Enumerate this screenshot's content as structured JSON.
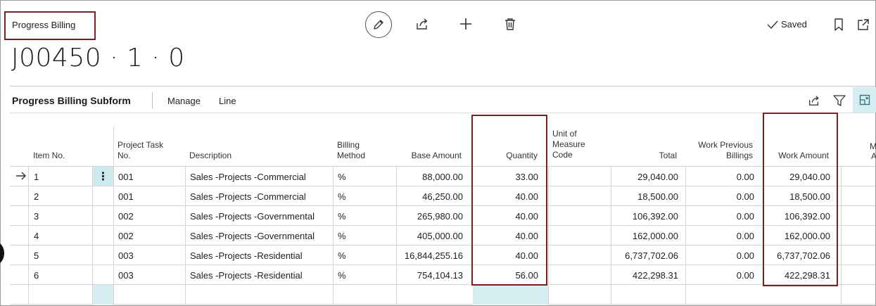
{
  "page": {
    "caption": "Progress Billing",
    "record_title": "J00450 · 1 · 0",
    "status_saved": "Saved"
  },
  "icons": {
    "edit": "pencil-icon",
    "share": "share-icon",
    "add": "plus-icon",
    "delete": "trash-icon",
    "saved": "check-icon",
    "bookmark": "bookmark-icon",
    "popout": "open-in-new-window-icon",
    "filter": "filter-icon",
    "layout": "layout-icon",
    "current_row": "arrow-right-icon",
    "row_menu": "more-vertical-icon"
  },
  "subform": {
    "title": "Progress Billing Subform",
    "actions": [
      "Manage",
      "Line"
    ]
  },
  "columns": {
    "item_no": "Item No.",
    "project_task_no": [
      "Project Task",
      "No."
    ],
    "description": "Description",
    "billing_method": [
      "Billing",
      "Method"
    ],
    "base_amount": "Base Amount",
    "quantity": "Quantity",
    "uom": [
      "Unit of",
      "Measure",
      "Code"
    ],
    "total": "Total",
    "work_previous": [
      "Work Previous",
      "Billings"
    ],
    "work_amount": "Work Amount",
    "next_partial_top": "M",
    "next_partial_bottom": "A"
  },
  "rows": [
    {
      "item_no": "1",
      "task_no": "001",
      "description": "Sales -Projects -Commercial",
      "billing_method": "%",
      "base_amount": "88,000.00",
      "quantity": "33.00",
      "uom": "",
      "total": "29,040.00",
      "work_previous": "0.00",
      "work_amount": "29,040.00"
    },
    {
      "item_no": "2",
      "task_no": "001",
      "description": "Sales -Projects -Commercial",
      "billing_method": "%",
      "base_amount": "46,250.00",
      "quantity": "40.00",
      "uom": "",
      "total": "18,500.00",
      "work_previous": "0.00",
      "work_amount": "18,500.00"
    },
    {
      "item_no": "3",
      "task_no": "002",
      "description": "Sales -Projects -Governmental",
      "billing_method": "%",
      "base_amount": "265,980.00",
      "quantity": "40.00",
      "uom": "",
      "total": "106,392.00",
      "work_previous": "0.00",
      "work_amount": "106,392.00"
    },
    {
      "item_no": "4",
      "task_no": "002",
      "description": "Sales -Projects -Governmental",
      "billing_method": "%",
      "base_amount": "405,000.00",
      "quantity": "40.00",
      "uom": "",
      "total": "162,000.00",
      "work_previous": "0.00",
      "work_amount": "162,000.00"
    },
    {
      "item_no": "5",
      "task_no": "003",
      "description": "Sales -Projects -Residential",
      "billing_method": "%",
      "base_amount": "16,844,255.16",
      "quantity": "40.00",
      "uom": "",
      "total": "6,737,702.06",
      "work_previous": "0.00",
      "work_amount": "6,737,702.06"
    },
    {
      "item_no": "6",
      "task_no": "003",
      "description": "Sales -Projects -Residential",
      "billing_method": "%",
      "base_amount": "754,104.13",
      "quantity": "56.00",
      "uom": "",
      "total": "422,298.31",
      "work_previous": "0.00",
      "work_amount": "422,298.31"
    }
  ],
  "colors": {
    "highlight_border": "#7a1f23",
    "selected_cell": "#cdebef",
    "grid_line": "#d4d4d4"
  }
}
